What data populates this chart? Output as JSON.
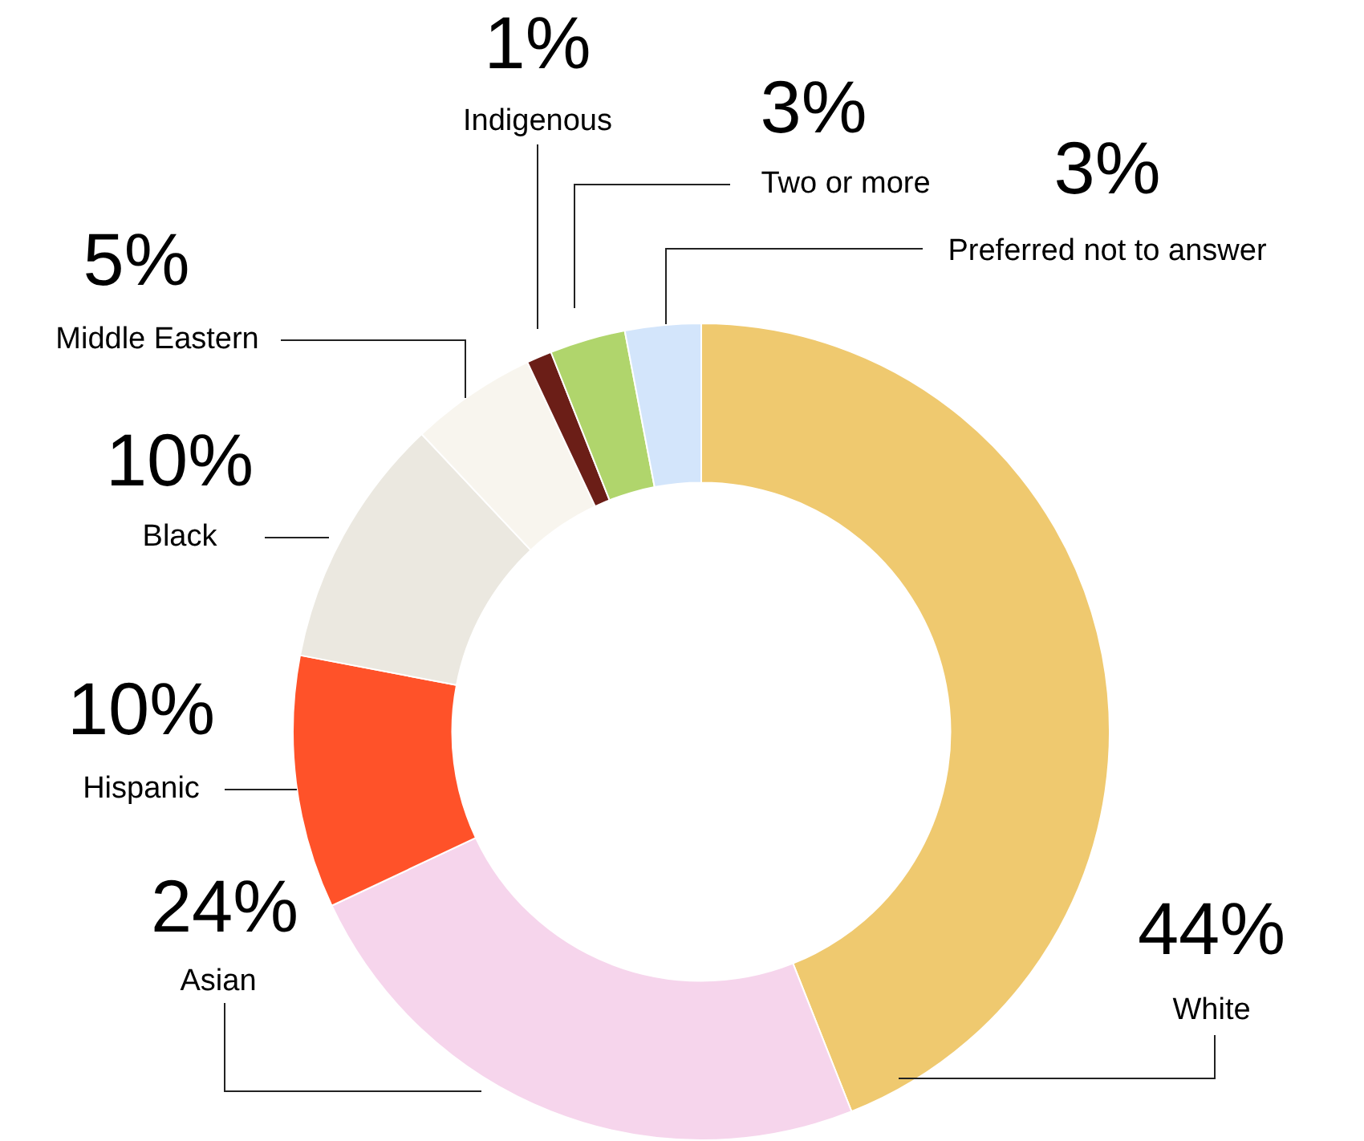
{
  "chart_data": {
    "type": "donut",
    "categories": [
      "White",
      "Asian",
      "Hispanic",
      "Black",
      "Middle Eastern",
      "Indigenous",
      "Two or more",
      "Preferred not to answer"
    ],
    "values": [
      44,
      24,
      10,
      10,
      5,
      1,
      3,
      3
    ],
    "colors": [
      "#efc96f",
      "#f6d5ec",
      "#ff5229",
      "#ebe8e0",
      "#f8f5ee",
      "#6b1e17",
      "#b0d56c",
      "#d3e5fb"
    ],
    "value_labels": [
      "44%",
      "24%",
      "10%",
      "10%",
      "5%",
      "1%",
      "3%",
      "3%"
    ],
    "legend": false
  }
}
